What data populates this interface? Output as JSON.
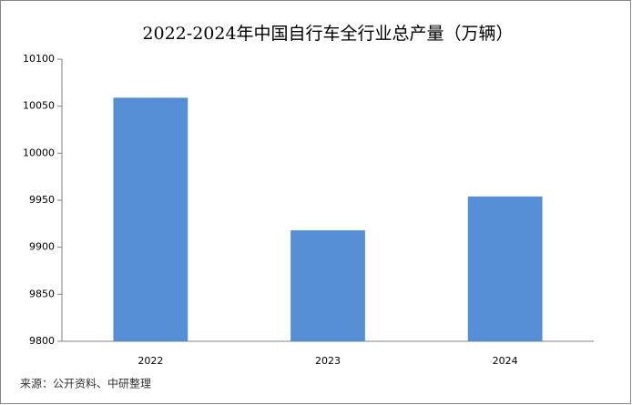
{
  "chart_data": {
    "type": "bar",
    "title": "2022-2024年中国自行车全行业总产量（万辆）",
    "categories": [
      "2022",
      "2023",
      "2024"
    ],
    "values": [
      10059,
      9918,
      9954
    ],
    "color": "#558ed5",
    "ylim": [
      9800,
      10100
    ],
    "yticks": [
      9800,
      9850,
      9900,
      9950,
      10000,
      10050,
      10100
    ],
    "grid": false,
    "source": "来源：公开资料、中研整理"
  }
}
